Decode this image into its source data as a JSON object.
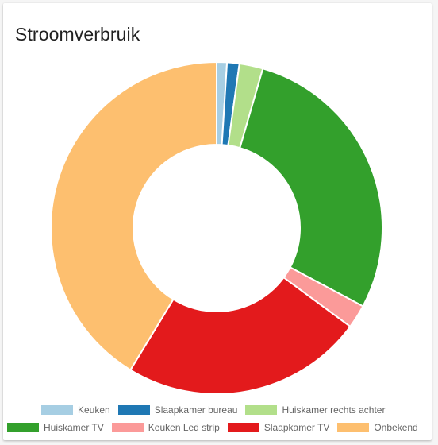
{
  "card": {
    "title": "Stroomverbruik"
  },
  "chart_data": {
    "type": "pie",
    "title": "Stroomverbruik",
    "labels": [
      "Keuken",
      "Slaapkamer bureau",
      "Huiskamer rechts achter",
      "Huiskamer TV",
      "Keuken Led strip",
      "Slaapkamer TV",
      "Onbekend"
    ],
    "values": [
      1.0,
      1.2,
      2.3,
      28.3,
      2.3,
      23.6,
      41.3
    ],
    "colors": [
      "#a6cee3",
      "#1f78b4",
      "#b2df8a",
      "#33a02c",
      "#fb9a99",
      "#e31a1c",
      "#fdbf6f"
    ],
    "donut": true,
    "legend": "bottom"
  }
}
